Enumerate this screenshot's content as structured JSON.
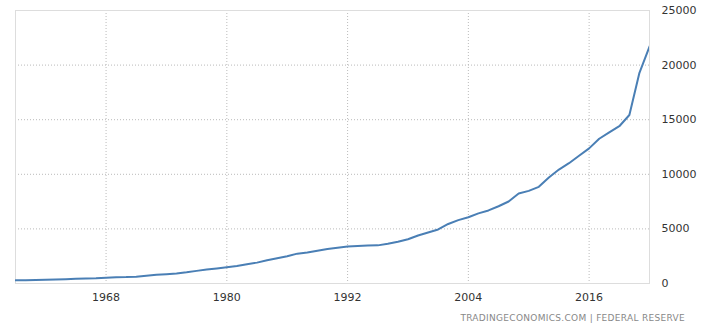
{
  "chart_data": {
    "type": "line",
    "caption": "TRADINGECONOMICS.COM | FEDERAL RESERVE",
    "color": "#4a7fb5",
    "grid": true,
    "x": [
      1959,
      1960,
      1961,
      1962,
      1963,
      1964,
      1965,
      1966,
      1967,
      1968,
      1969,
      1970,
      1971,
      1972,
      1973,
      1974,
      1975,
      1976,
      1977,
      1978,
      1979,
      1980,
      1981,
      1982,
      1983,
      1984,
      1985,
      1986,
      1987,
      1988,
      1989,
      1990,
      1991,
      1992,
      1993,
      1994,
      1995,
      1996,
      1997,
      1998,
      1999,
      2000,
      2001,
      2002,
      2003,
      2004,
      2005,
      2006,
      2007,
      2008,
      2009,
      2010,
      2011,
      2012,
      2013,
      2014,
      2015,
      2016,
      2017,
      2018,
      2019,
      2020,
      2021,
      2022
    ],
    "values": [
      287,
      298,
      313,
      340,
      368,
      397,
      429,
      462,
      481,
      527,
      570,
      588,
      628,
      713,
      805,
      857,
      906,
      1021,
      1157,
      1275,
      1371,
      1482,
      1601,
      1763,
      1912,
      2133,
      2312,
      2497,
      2735,
      2832,
      2994,
      3159,
      3279,
      3381,
      3431,
      3484,
      3492,
      3640,
      3829,
      4047,
      4394,
      4665,
      4948,
      5451,
      5806,
      6072,
      6422,
      6691,
      7074,
      7507,
      8237,
      8483,
      8851,
      9709,
      10432,
      11016,
      11702,
      12373,
      13257,
      13843,
      14403,
      15432,
      19290,
      21700
    ],
    "xlim": [
      1959,
      2022
    ],
    "xticks": [
      1968,
      1980,
      1992,
      2004,
      2016
    ],
    "ylim": [
      0,
      25000
    ],
    "yticks": [
      0,
      5000,
      10000,
      15000,
      20000,
      25000
    ]
  }
}
